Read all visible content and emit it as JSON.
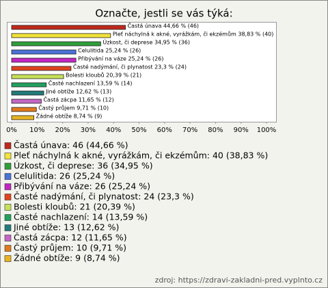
{
  "chart_data": {
    "type": "hbar",
    "title": "Označte, jestli se vás týká:",
    "categories": [
      "Častá únava",
      "Pleť náchylná k akné, vyrážkám, či ekzémům",
      "Úzkost, či deprese",
      "Celulitida",
      "Přibývání na váze",
      "Časté nadýmání, či plynatost",
      "Bolesti kloubů",
      "Časté nachlazení",
      "Jiné obtíže",
      "Častá zácpa",
      "Častý průjem",
      "Žádné obtíže"
    ],
    "values": [
      44.66,
      38.83,
      34.95,
      25.24,
      25.24,
      23.3,
      20.39,
      13.59,
      12.62,
      11.65,
      9.71,
      8.74
    ],
    "value_labels": [
      "Častá únava 44,66 % (46)",
      "Pleť náchylná k akné, vyrážkám, či ekzémům 38,83 % (40)",
      "Úzkost, či deprese 34,95 % (36)",
      "Celulitida 25,24 % (26)",
      "Přibývání na váze 25,24 % (26)",
      "Časté nadýmání, či plynatost 23,3 % (24)",
      "Bolesti kloubů 20,39 % (21)",
      "Časté nachlazení 13,59 % (14)",
      "Jiné obtíže 12,62 % (13)",
      "Častá zácpa 11,65 % (12)",
      "Častý průjem 9,71 % (10)",
      "Žádné obtíže 8,74 % (9)"
    ],
    "legend_labels": [
      "Častá únava: 46 (44,66 %)",
      "Pleť náchylná k akné, vyrážkám, či ekzémům: 40 (38,83 %)",
      "Úzkost, či deprese: 36 (34,95 %)",
      "Celulitida: 26 (25,24 %)",
      "Přibývání na váze: 26 (25,24 %)",
      "Časté nadýmání, či plynatost: 24 (23,3 %)",
      "Bolesti kloubů: 21 (20,39 %)",
      "Časté nachlazení: 14 (13,59 %)",
      "Jiné obtíže: 13 (12,62 %)",
      "Častá zácpa: 12 (11,65 %)",
      "Častý průjem: 10 (9,71 %)",
      "Žádné obtíže: 9 (8,74 %)"
    ],
    "colors": [
      "#c0281c",
      "#f2e33a",
      "#2f9e3a",
      "#4a72d8",
      "#c226c2",
      "#e0441e",
      "#c6e05a",
      "#22a05e",
      "#237a7a",
      "#c466c4",
      "#e07a1e",
      "#e8b422"
    ],
    "xlim": [
      0,
      100
    ],
    "xticks": [
      {
        "value": 0,
        "label": "0%"
      },
      {
        "value": 10,
        "label": "10%"
      },
      {
        "value": 20,
        "label": "20%"
      },
      {
        "value": 30,
        "label": "30%"
      },
      {
        "value": 40,
        "label": "40%"
      },
      {
        "value": 50,
        "label": "50%"
      },
      {
        "value": 60,
        "label": "60%"
      },
      {
        "value": 70,
        "label": "70%"
      },
      {
        "value": 80,
        "label": "80%"
      },
      {
        "value": 90,
        "label": "90%"
      },
      {
        "value": 100,
        "label": "100%"
      }
    ],
    "source": "zdroj: https://zdravi-zakladni-pred.vyplnto.cz"
  }
}
